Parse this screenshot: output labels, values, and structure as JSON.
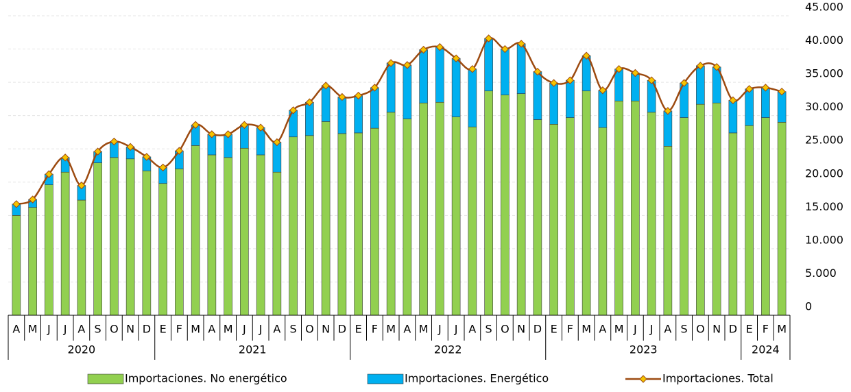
{
  "chart_data": {
    "type": "stacked-bar-line",
    "categories": [
      "A",
      "M",
      "J",
      "J",
      "A",
      "S",
      "O",
      "N",
      "D",
      "E",
      "F",
      "M",
      "A",
      "M",
      "J",
      "J",
      "A",
      "S",
      "O",
      "N",
      "D",
      "E",
      "F",
      "M",
      "A",
      "M",
      "J",
      "J",
      "A",
      "S",
      "O",
      "N",
      "D",
      "E",
      "F",
      "M",
      "A",
      "M",
      "J",
      "J",
      "A",
      "S",
      "O",
      "N",
      "D",
      "E",
      "F",
      "M"
    ],
    "groups": [
      {
        "label": "2020",
        "size": 9
      },
      {
        "label": "2021",
        "size": 12
      },
      {
        "label": "2022",
        "size": 12
      },
      {
        "label": "2023",
        "size": 12
      },
      {
        "label": "2024",
        "size": 3
      }
    ],
    "series": [
      {
        "name": "Importaciones. No energético",
        "type": "bar",
        "color": "#92d050",
        "values": [
          15000,
          16200,
          19600,
          21500,
          17300,
          22900,
          23700,
          23500,
          21700,
          19800,
          22000,
          25500,
          24100,
          23700,
          25100,
          24100,
          21500,
          26800,
          27000,
          29100,
          27300,
          27400,
          28100,
          30500,
          29500,
          31900,
          32000,
          29800,
          28300,
          33700,
          33100,
          33300,
          29400,
          28700,
          29700,
          33700,
          28200,
          32200,
          32200,
          30500,
          25400,
          29700,
          31700,
          31900,
          27400,
          28500,
          29700,
          29000
        ]
      },
      {
        "name": "Importaciones. Energético",
        "type": "bar",
        "color": "#00b0f0",
        "values": [
          1700,
          1200,
          1600,
          2200,
          2200,
          1700,
          2400,
          1800,
          2100,
          2400,
          2700,
          3100,
          3100,
          3500,
          3500,
          4100,
          4500,
          4000,
          5000,
          5400,
          5500,
          5600,
          6100,
          7400,
          8100,
          8000,
          8300,
          8800,
          8700,
          7900,
          6900,
          7500,
          7200,
          6200,
          5600,
          5300,
          5600,
          4800,
          4200,
          4800,
          5300,
          5200,
          5800,
          5400,
          4900,
          5500,
          4500,
          4600
        ]
      },
      {
        "name": "Importaciones. Total",
        "type": "line",
        "color": "#9c4a10",
        "marker_color": "#f5c400",
        "values": [
          16700,
          17400,
          21200,
          23700,
          19500,
          24600,
          26100,
          25300,
          23800,
          22200,
          24700,
          28600,
          27200,
          27200,
          28600,
          28200,
          26000,
          30800,
          32000,
          34500,
          32800,
          33000,
          34200,
          37900,
          37600,
          39900,
          40300,
          38600,
          37000,
          41600,
          40000,
          40800,
          36600,
          34900,
          35300,
          39000,
          33800,
          37000,
          36400,
          35300,
          30700,
          34900,
          37500,
          37300,
          32300,
          34000,
          34200,
          33600
        ]
      }
    ],
    "ylim": [
      0,
      45000
    ],
    "yticks": [
      0,
      {
        "value": 5000,
        "label": "5.000"
      },
      {
        "value": 10000,
        "label": "10.000"
      },
      {
        "value": 15000,
        "label": "15.000"
      },
      {
        "value": 20000,
        "label": "20.000"
      },
      {
        "value": 25000,
        "label": "25.000"
      },
      {
        "value": 30000,
        "label": "30.000"
      },
      {
        "value": 35000,
        "label": "35.000"
      },
      {
        "value": 40000,
        "label": "40.000"
      },
      {
        "value": 45000,
        "label": "45.000"
      }
    ],
    "grid": true,
    "legend": "bottom"
  }
}
